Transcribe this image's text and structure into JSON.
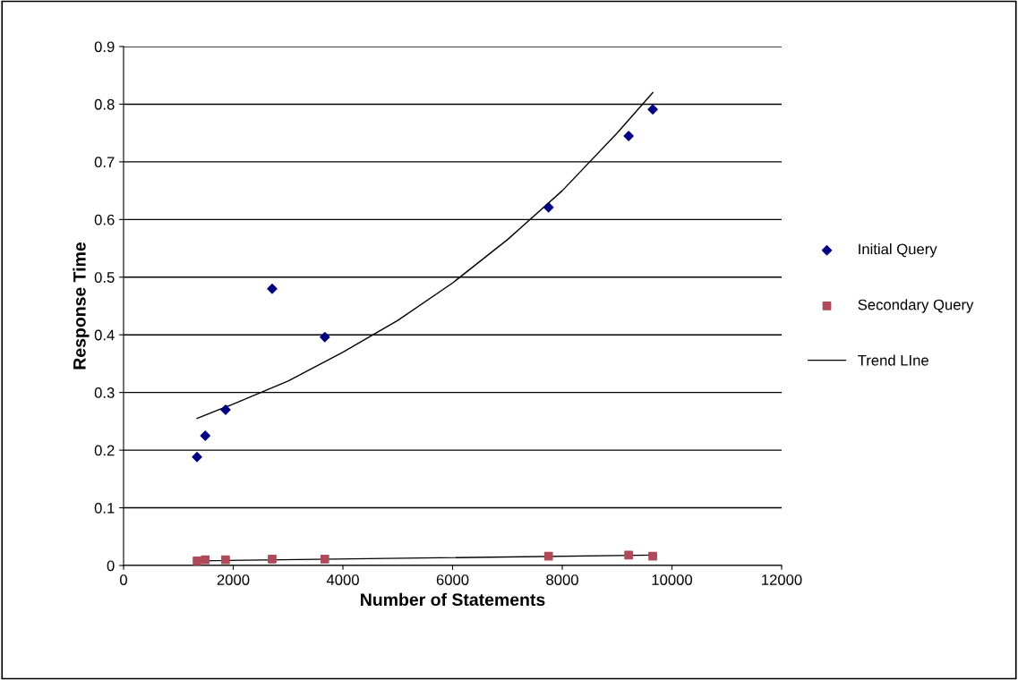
{
  "chart_data": {
    "type": "scatter",
    "xlabel": "Number of Statements",
    "ylabel": "Response Time",
    "xlim": [
      0,
      12000
    ],
    "xticks": [
      0,
      2000,
      4000,
      6000,
      8000,
      10000,
      12000
    ],
    "ylim": [
      0,
      0.9
    ],
    "yticks": [
      0,
      0.1,
      0.2,
      0.3,
      0.4,
      0.5,
      0.6,
      0.7,
      0.8,
      0.9
    ],
    "grid": "y",
    "legend": "right",
    "series": [
      {
        "name": "Initial Query",
        "marker": "diamond",
        "color": "#000080",
        "x": [
          1340,
          1490,
          1860,
          2710,
          3670,
          7750,
          9210,
          9650
        ],
        "values": [
          0.188,
          0.225,
          0.27,
          0.48,
          0.396,
          0.621,
          0.745,
          0.791
        ]
      },
      {
        "name": "Secondary Query",
        "marker": "square",
        "color": "#b04a5a",
        "x": [
          1340,
          1490,
          1860,
          2710,
          3670,
          7750,
          9210,
          9650
        ],
        "values": [
          0.008,
          0.01,
          0.01,
          0.011,
          0.011,
          0.016,
          0.018,
          0.016
        ]
      },
      {
        "name": "Trend LIne",
        "type": "line",
        "marker": "none",
        "color": "#000000",
        "x": [
          1340,
          2000,
          3000,
          4000,
          5000,
          6000,
          7000,
          8000,
          9000,
          9650
        ],
        "values": [
          0.255,
          0.28,
          0.32,
          0.37,
          0.425,
          0.49,
          0.565,
          0.65,
          0.75,
          0.82
        ]
      },
      {
        "type": "line",
        "marker": "none",
        "color": "#000000",
        "x": [
          1340,
          9650
        ],
        "values": [
          0.008,
          0.018
        ]
      }
    ]
  }
}
